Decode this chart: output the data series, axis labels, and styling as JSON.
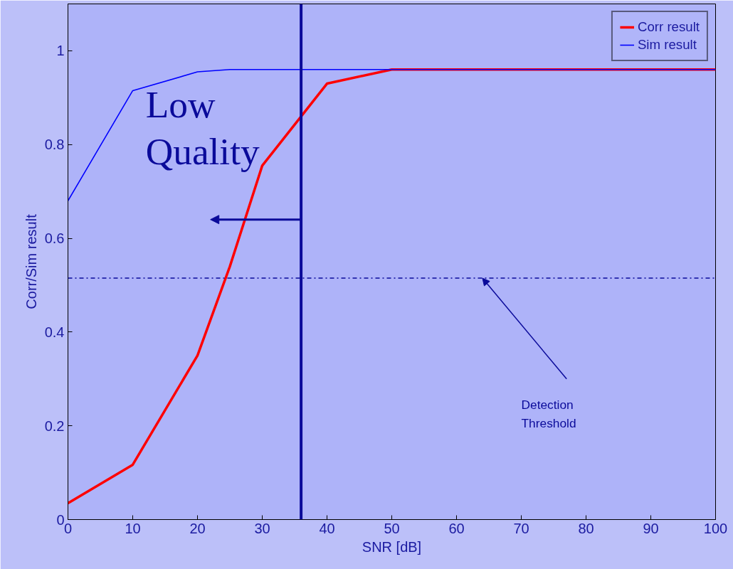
{
  "chart_data": {
    "type": "line",
    "xlabel": "SNR [dB]",
    "ylabel": "Corr/Sim result",
    "xlim": [
      0,
      100
    ],
    "ylim": [
      0,
      1.1
    ],
    "xticks": [
      0,
      10,
      20,
      30,
      40,
      50,
      60,
      70,
      80,
      90,
      100
    ],
    "yticks": [
      0,
      0.2,
      0.4,
      0.6,
      0.8,
      1
    ],
    "series": [
      {
        "name": "Corr result",
        "color": "#ff0000",
        "x": [
          0,
          10,
          20,
          25,
          30,
          40,
          50,
          100
        ],
        "values": [
          0.035,
          0.117,
          0.35,
          0.54,
          0.755,
          0.93,
          0.96,
          0.96
        ]
      },
      {
        "name": "Sim result",
        "color": "#0000ff",
        "x": [
          0,
          10,
          20,
          25,
          100
        ],
        "values": [
          0.68,
          0.915,
          0.955,
          0.96,
          0.96
        ]
      }
    ],
    "ref_lines": [
      {
        "axis": "x",
        "value": 36,
        "label": "Low\nQuality",
        "color": "#0a0a9a",
        "line_style": "solid"
      },
      {
        "axis": "y",
        "value": 0.515,
        "label": "Detection\nThreshold",
        "color": "#0a0a9a",
        "line_style": "dashdot"
      }
    ],
    "legend": "top right",
    "grid": false,
    "marker": "none",
    "line_style": "solid"
  }
}
